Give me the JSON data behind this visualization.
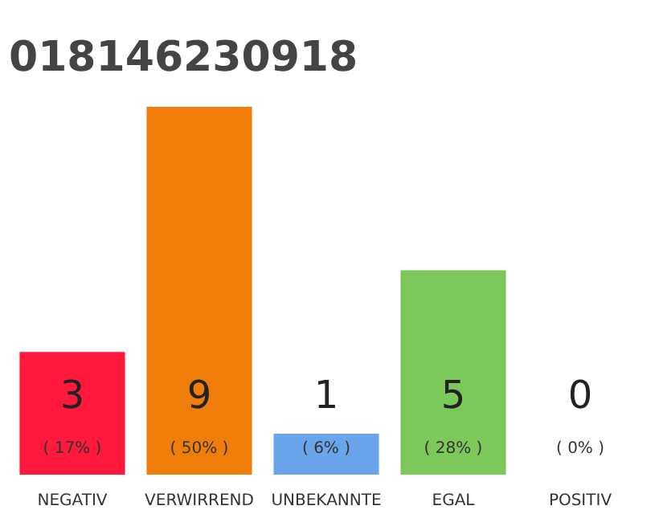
{
  "chart_data": {
    "type": "bar",
    "title": "018146230918",
    "categories": [
      "NEGATIV",
      "VERWIRREND",
      "UNBEKANNTE",
      "EGAL",
      "POSITIV"
    ],
    "values": [
      3,
      9,
      1,
      5,
      0
    ],
    "colors": [
      "#ff1a3d",
      "#f07d0a",
      "#6aa5ec",
      "#7dc85a",
      "#bbbbbb"
    ],
    "data_labels": true,
    "annotations": [
      "( 17% )",
      "( 50% )",
      "( 6% )",
      "( 28% )",
      "( 0% )"
    ],
    "grid": false
  }
}
